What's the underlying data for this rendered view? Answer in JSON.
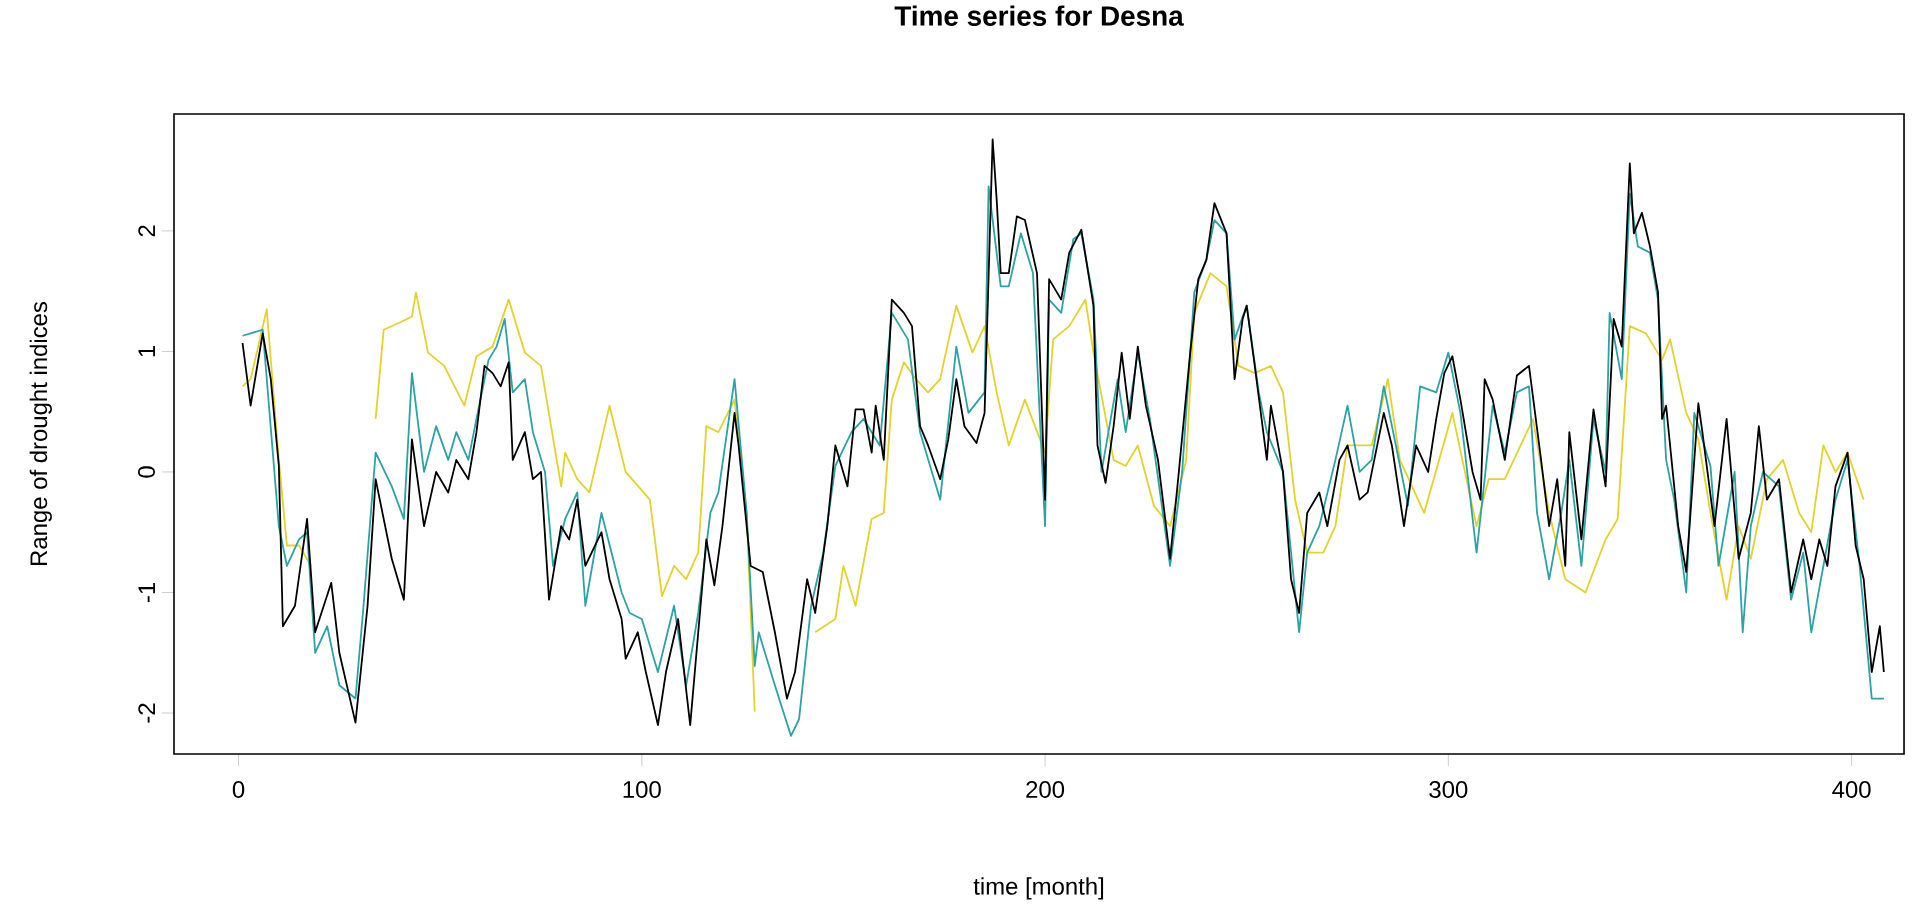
{
  "chart_data": {
    "type": "line",
    "title": "Time series for Desna",
    "xlabel": "time [month]",
    "ylabel": "Range of drought indices",
    "xlim": [
      -16,
      413
    ],
    "ylim": [
      -2.34,
      2.97
    ],
    "xticks": [
      0,
      100,
      200,
      300,
      400
    ],
    "yticks": [
      -2,
      -1,
      0,
      1,
      2
    ],
    "series": [
      {
        "color": "#e3d22c",
        "x": [
          1,
          3,
          7,
          10,
          12,
          15,
          18,
          22,
          26,
          31,
          34,
          36,
          40,
          43,
          44,
          47,
          51,
          56,
          59,
          63,
          67,
          71,
          75,
          80,
          81,
          84,
          87,
          92,
          96,
          102,
          105,
          108,
          111,
          114,
          116,
          119,
          123,
          126,
          128,
          129,
          135,
          141,
          143,
          148,
          150,
          153,
          157,
          160,
          162,
          165,
          168,
          171,
          174,
          175,
          178,
          182,
          185,
          188,
          191,
          195,
          200,
          202,
          206,
          210,
          212,
          217,
          220,
          223,
          227,
          231,
          235,
          237,
          241,
          245,
          248,
          252,
          256,
          259,
          262,
          265,
          269,
          272,
          275,
          281,
          285,
          288,
          291,
          294,
          301,
          307,
          310,
          314,
          321,
          325,
          329,
          334,
          339,
          342,
          345,
          349,
          353,
          355,
          359,
          362,
          365,
          369,
          372,
          375,
          379,
          383,
          387,
          390,
          393,
          396,
          399,
          403
        ],
        "values": [
          0.71,
          0.77,
          1.35,
          0.1,
          -0.61,
          -0.61,
          -0.78,
          null,
          null,
          null,
          0.44,
          1.18,
          1.24,
          1.29,
          1.49,
          0.99,
          0.88,
          0.55,
          0.96,
          1.04,
          1.43,
          0.99,
          0.88,
          -0.12,
          0.16,
          -0.06,
          -0.17,
          0.55,
          0,
          -0.23,
          -1.03,
          -0.78,
          -0.89,
          -0.67,
          0.38,
          0.33,
          0.6,
          -0.34,
          -1.99,
          null,
          null,
          null,
          -1.33,
          -1.22,
          -0.78,
          -1.11,
          -0.39,
          -0.34,
          0.6,
          0.91,
          0.77,
          0.66,
          0.77,
          0.93,
          1.38,
          0.99,
          1.21,
          0.66,
          0.22,
          0.6,
          0.16,
          1.1,
          1.21,
          1.43,
          0.99,
          0.1,
          0.05,
          0.22,
          -0.28,
          -0.45,
          0.1,
          1.32,
          1.65,
          1.54,
          0.88,
          0.82,
          0.88,
          0.66,
          -0.23,
          -0.67,
          -0.67,
          -0.45,
          0.22,
          0.22,
          0.77,
          0.1,
          -0.12,
          -0.34,
          0.49,
          -0.45,
          -0.06,
          -0.06,
          0.44,
          -0.34,
          -0.89,
          -1.0,
          -0.56,
          -0.39,
          1.21,
          1.15,
          0.93,
          1.1,
          0.49,
          0.27,
          -0.34,
          -1.06,
          -0.45,
          -0.72,
          -0.06,
          0.1,
          -0.34,
          -0.5,
          0.22,
          0,
          0.16,
          -0.23
        ]
      },
      {
        "color": "#2ba2a4",
        "x": [
          1,
          6,
          10,
          12,
          15,
          17,
          19,
          22,
          25,
          29,
          31,
          34,
          38,
          41,
          43,
          46,
          49,
          52,
          54,
          57,
          59,
          62,
          64,
          66,
          68,
          71,
          73,
          76,
          78,
          81,
          84,
          86,
          90,
          95,
          97,
          100,
          104,
          108,
          111,
          114,
          117,
          119,
          123,
          126,
          128,
          129,
          133,
          137,
          139,
          142,
          145,
          148,
          152,
          155,
          159,
          162,
          166,
          169,
          174,
          178,
          181,
          185,
          186,
          189,
          191,
          194,
          197,
          200,
          201,
          204,
          207,
          209,
          212,
          214,
          218,
          220,
          223,
          226,
          231,
          234,
          237,
          240,
          242,
          245,
          247,
          250,
          253,
          255,
          259,
          263,
          265,
          268,
          272,
          275,
          278,
          281,
          284,
          287,
          290,
          293,
          297,
          300,
          303,
          307,
          311,
          314,
          317,
          320,
          322,
          325,
          328,
          330,
          333,
          336,
          339,
          340,
          343,
          345,
          347,
          350,
          352,
          354,
          356,
          359,
          361,
          365,
          367,
          371,
          373,
          375,
          378,
          382,
          385,
          388,
          390,
          393,
          396,
          399,
          402,
          405,
          408
        ],
        "values": [
          1.13,
          1.18,
          -0.45,
          -0.78,
          -0.56,
          -0.5,
          -1.5,
          -1.28,
          -1.77,
          -1.88,
          -1.11,
          0.16,
          -0.12,
          -0.39,
          0.82,
          0,
          0.38,
          0.1,
          0.33,
          0.1,
          0.44,
          0.93,
          1.04,
          1.27,
          0.66,
          0.77,
          0.33,
          0,
          -0.78,
          -0.39,
          -0.17,
          -1.11,
          -0.34,
          -1.0,
          -1.17,
          -1.22,
          -1.66,
          -1.11,
          -1.77,
          -1.17,
          -0.34,
          -0.17,
          0.77,
          -0.34,
          -1.61,
          -1.33,
          -1.77,
          -2.19,
          -2.05,
          -1.11,
          -0.67,
          0.05,
          0.33,
          0.44,
          0.22,
          1.32,
          1.1,
          0.33,
          -0.23,
          1.04,
          0.49,
          0.66,
          2.37,
          1.54,
          1.54,
          1.98,
          1.65,
          -0.45,
          1.43,
          1.32,
          1.93,
          1.98,
          1.43,
          0,
          0.77,
          0.33,
          0.99,
          0.44,
          -0.78,
          0,
          1.49,
          1.76,
          2.09,
          1.98,
          1.1,
          1.38,
          0.66,
          0.33,
          0,
          -1.33,
          -0.67,
          -0.45,
          0.1,
          0.55,
          0,
          0.1,
          0.71,
          0.22,
          -0.28,
          0.71,
          0.66,
          0.99,
          0.49,
          -0.67,
          0.55,
          0.16,
          0.66,
          0.71,
          -0.34,
          -0.89,
          -0.34,
          0.1,
          -0.78,
          0.44,
          0,
          1.32,
          0.77,
          2.31,
          1.87,
          1.82,
          1.43,
          0.1,
          -0.23,
          -1.0,
          0.49,
          0.05,
          -0.78,
          0,
          -1.33,
          -0.45,
          0,
          -0.12,
          -1.06,
          -0.67,
          -1.33,
          -0.78,
          -0.23,
          0.1,
          -0.78,
          -1.88,
          -1.88
        ]
      },
      {
        "color": "#000000",
        "x": [
          1,
          3,
          6,
          8,
          10,
          11,
          14,
          17,
          19,
          23,
          25,
          29,
          32,
          34,
          38,
          41,
          43,
          46,
          49,
          52,
          54,
          57,
          59,
          61,
          63,
          65,
          67,
          68,
          71,
          73,
          75,
          77,
          80,
          82,
          84,
          86,
          90,
          92,
          95,
          96,
          99,
          101,
          104,
          106,
          109,
          112,
          114,
          116,
          118,
          120,
          123,
          124,
          127,
          130,
          133,
          136,
          138,
          141,
          143,
          146,
          148,
          151,
          153,
          155,
          157,
          158,
          160,
          162,
          165,
          167,
          169,
          171,
          174,
          176,
          178,
          180,
          183,
          185,
          187,
          188,
          189,
          191,
          193,
          195,
          198,
          200,
          201,
          204,
          206,
          209,
          212,
          213,
          215,
          217,
          219,
          221,
          223,
          225,
          228,
          231,
          233,
          236,
          238,
          240,
          242,
          245,
          247,
          249,
          250,
          252,
          255,
          256,
          259,
          261,
          263,
          265,
          268,
          270,
          273,
          275,
          278,
          280,
          284,
          286,
          289,
          292,
          295,
          297,
          299,
          301,
          303,
          306,
          308,
          309,
          311,
          314,
          317,
          320,
          323,
          325,
          327,
          329,
          330,
          333,
          336,
          339,
          341,
          343,
          345,
          346,
          348,
          350,
          352,
          353,
          354,
          357,
          359,
          362,
          363,
          366,
          369,
          372,
          375,
          377,
          379,
          382,
          385,
          388,
          390,
          392,
          394,
          396,
          399,
          401,
          403,
          405,
          407,
          408
        ],
        "values": [
          1.07,
          0.55,
          1.15,
          0.77,
          0.05,
          -1.28,
          -1.11,
          -0.39,
          -1.33,
          -0.92,
          -1.5,
          -2.08,
          -1.11,
          -0.06,
          -0.72,
          -1.06,
          0.27,
          -0.45,
          0,
          -0.17,
          0.1,
          -0.06,
          0.33,
          0.88,
          0.82,
          0.71,
          0.91,
          0.1,
          0.33,
          -0.06,
          0,
          -1.06,
          -0.45,
          -0.56,
          -0.23,
          -0.78,
          -0.5,
          -0.89,
          -1.22,
          -1.55,
          -1.33,
          -1.66,
          -2.1,
          -1.66,
          -1.22,
          -2.1,
          -1.33,
          -0.56,
          -0.94,
          -0.45,
          0.49,
          0.22,
          -0.78,
          -0.83,
          -1.33,
          -1.88,
          -1.66,
          -0.89,
          -1.17,
          -0.45,
          0.22,
          -0.12,
          0.52,
          0.52,
          0.16,
          0.55,
          0.1,
          1.43,
          1.32,
          1.21,
          0.38,
          0.22,
          -0.06,
          0.27,
          0.77,
          0.38,
          0.24,
          0.49,
          2.76,
          2.26,
          1.65,
          1.65,
          2.12,
          2.09,
          1.65,
          -0.23,
          1.6,
          1.43,
          1.82,
          2.01,
          1.38,
          0.22,
          -0.09,
          0.38,
          0.99,
          0.44,
          1.04,
          0.55,
          0.1,
          -0.72,
          -0.06,
          0.99,
          1.6,
          1.76,
          2.23,
          1.98,
          0.77,
          1.27,
          1.38,
          0.88,
          0.1,
          0.55,
          0,
          -0.89,
          -1.17,
          -0.34,
          -0.17,
          -0.45,
          0.1,
          0.22,
          -0.23,
          -0.17,
          0.49,
          0.22,
          -0.45,
          0.22,
          0,
          0.44,
          0.82,
          0.96,
          0.6,
          0,
          -0.23,
          0.77,
          0.6,
          0.1,
          0.8,
          0.88,
          0.1,
          -0.45,
          -0.06,
          -0.78,
          0.33,
          -0.56,
          0.52,
          -0.12,
          1.27,
          1.04,
          2.56,
          1.98,
          2.15,
          1.87,
          1.49,
          0.44,
          0.55,
          -0.45,
          -0.83,
          0.57,
          0.33,
          -0.45,
          0.44,
          -0.72,
          -0.34,
          0.38,
          -0.23,
          -0.06,
          -1.0,
          -0.56,
          -0.89,
          -0.56,
          -0.78,
          -0.12,
          0.16,
          -0.61,
          -0.89,
          -1.66,
          -1.28,
          -1.66
        ]
      }
    ]
  }
}
